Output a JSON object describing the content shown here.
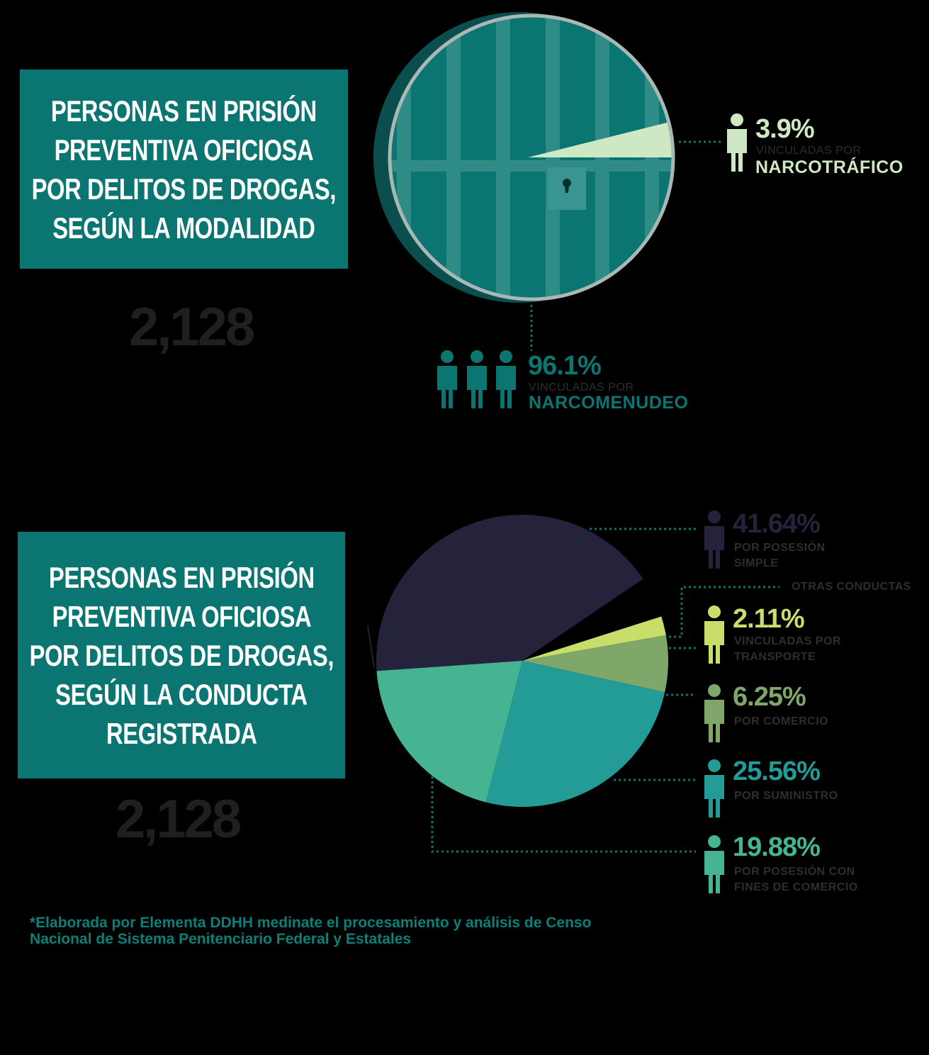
{
  "colors": {
    "teal_box": "#0b7571",
    "narcomenudeo": "#0b7571",
    "narcotrafico": "#cfe8c4",
    "posesion_simple": "#25223b",
    "otras": "#000000",
    "transporte": "#c8de6a",
    "comercio": "#7fa76a",
    "suministro": "#239b96",
    "posesion_fines": "#46b392"
  },
  "section1": {
    "title_lines": [
      "PERSONAS EN PRISIÓN",
      "PREVENTIVA OFICIOSA",
      "POR DELITOS DE DROGAS,",
      "SEGÚN LA MODALIDAD"
    ],
    "total": "2,128",
    "labels": [
      {
        "pct": "3.9%",
        "caption": "VINCULADAS POR",
        "name": "NARCOTRÁFICO"
      },
      {
        "pct": "96.1%",
        "caption": "VINCULADAS POR",
        "name": "NARCOMENUDEO"
      }
    ]
  },
  "section2": {
    "title_lines": [
      "PERSONAS EN PRISIÓN",
      "PREVENTIVA OFICIOSA",
      "POR DELITOS DE DROGAS,",
      "SEGÚN LA CONDUCTA",
      "REGISTRADA"
    ],
    "total": "2,128",
    "labels": [
      {
        "pct": "41.64%",
        "lines": [
          "POR POSESIÓN",
          "SIMPLE"
        ]
      },
      {
        "pct": "",
        "lines": [
          "OTRAS CONDUCTAS"
        ]
      },
      {
        "pct": "2.11%",
        "lines": [
          "VINCULADAS POR",
          "TRANSPORTE"
        ]
      },
      {
        "pct": "6.25%",
        "lines": [
          "POR COMERCIO"
        ]
      },
      {
        "pct": "25.56%",
        "lines": [
          "POR SUMINISTRO"
        ]
      },
      {
        "pct": "19.88%",
        "lines": [
          "POR POSESIÓN CON",
          "FINES DE COMERCIO"
        ]
      }
    ]
  },
  "chart_data": [
    {
      "type": "pie",
      "categories": [
        "NARCOTRÁFICO",
        "NARCOMENUDEO"
      ],
      "values": [
        3.9,
        96.1
      ]
    },
    {
      "type": "pie",
      "categories": [
        "POR POSESIÓN SIMPLE",
        "OTRAS CONDUCTAS",
        "VINCULADAS POR TRANSPORTE",
        "POR COMERCIO",
        "POR SUMINISTRO",
        "POR POSESIÓN CON FINES DE COMERCIO"
      ],
      "values": [
        41.64,
        4.56,
        2.11,
        6.25,
        25.56,
        19.88
      ]
    }
  ],
  "footnote_lines": [
    "*Elaborada por Elementa DDHH medinate el procesamiento y análisis de Censo",
    "Nacional de Sistema Penitenciario Federal y Estatales"
  ]
}
